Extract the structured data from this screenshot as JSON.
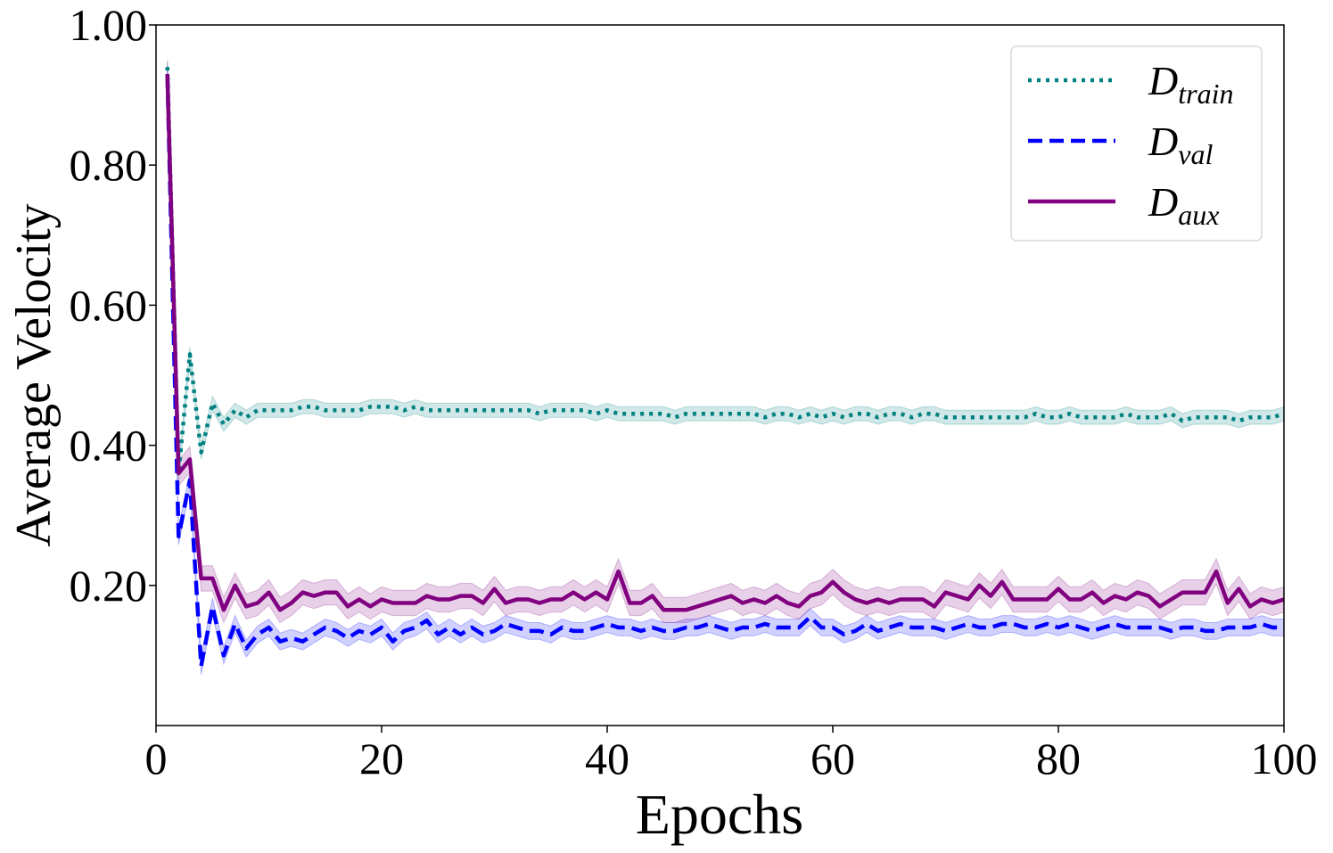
{
  "chart_data": {
    "type": "line",
    "title": "",
    "xlabel": "Epochs",
    "ylabel": "Average Velocity",
    "xlim": [
      0,
      100
    ],
    "ylim": [
      0.0,
      1.0
    ],
    "xticks": [
      0,
      20,
      40,
      60,
      80,
      100
    ],
    "xtick_labels": [
      "0",
      "20",
      "40",
      "60",
      "80",
      "100"
    ],
    "yticks": [
      0.2,
      0.4,
      0.6,
      0.8,
      1.0
    ],
    "ytick_labels": [
      "0.20",
      "0.40",
      "0.60",
      "0.80",
      "1.00"
    ],
    "legend_position": "top-right",
    "grid": false,
    "x": [
      1,
      2,
      3,
      4,
      5,
      6,
      7,
      8,
      9,
      10,
      11,
      12,
      13,
      14,
      15,
      16,
      17,
      18,
      19,
      20,
      21,
      22,
      23,
      24,
      25,
      26,
      27,
      28,
      29,
      30,
      31,
      32,
      33,
      34,
      35,
      36,
      37,
      38,
      39,
      40,
      41,
      42,
      43,
      44,
      45,
      46,
      47,
      48,
      49,
      50,
      51,
      52,
      53,
      54,
      55,
      56,
      57,
      58,
      59,
      60,
      61,
      62,
      63,
      64,
      65,
      66,
      67,
      68,
      69,
      70,
      71,
      72,
      73,
      74,
      75,
      76,
      77,
      78,
      79,
      80,
      81,
      82,
      83,
      84,
      85,
      86,
      87,
      88,
      89,
      90,
      91,
      92,
      93,
      94,
      95,
      96,
      97,
      98,
      99,
      100
    ],
    "series": [
      {
        "name": "D_train",
        "label_main": "D",
        "label_sub": "train",
        "color": "#008080",
        "style": "dotted",
        "values": [
          0.94,
          0.36,
          0.53,
          0.39,
          0.46,
          0.43,
          0.45,
          0.44,
          0.45,
          0.45,
          0.45,
          0.45,
          0.455,
          0.455,
          0.45,
          0.45,
          0.45,
          0.45,
          0.455,
          0.455,
          0.455,
          0.45,
          0.455,
          0.45,
          0.45,
          0.45,
          0.45,
          0.45,
          0.45,
          0.45,
          0.45,
          0.45,
          0.45,
          0.445,
          0.45,
          0.45,
          0.45,
          0.45,
          0.445,
          0.45,
          0.445,
          0.445,
          0.445,
          0.445,
          0.445,
          0.44,
          0.445,
          0.445,
          0.445,
          0.445,
          0.445,
          0.445,
          0.445,
          0.44,
          0.445,
          0.445,
          0.44,
          0.445,
          0.44,
          0.445,
          0.44,
          0.445,
          0.445,
          0.44,
          0.445,
          0.445,
          0.44,
          0.445,
          0.445,
          0.44,
          0.44,
          0.44,
          0.44,
          0.44,
          0.44,
          0.44,
          0.44,
          0.445,
          0.44,
          0.44,
          0.445,
          0.44,
          0.44,
          0.44,
          0.44,
          0.445,
          0.44,
          0.44,
          0.44,
          0.445,
          0.435,
          0.44,
          0.44,
          0.44,
          0.44,
          0.435,
          0.44,
          0.44,
          0.44,
          0.445
        ],
        "band": 0.01
      },
      {
        "name": "D_val",
        "label_main": "D",
        "label_sub": "val",
        "color": "#0000ff",
        "style": "dashed",
        "values": [
          0.93,
          0.27,
          0.35,
          0.085,
          0.17,
          0.1,
          0.145,
          0.11,
          0.13,
          0.14,
          0.12,
          0.125,
          0.12,
          0.13,
          0.14,
          0.135,
          0.125,
          0.135,
          0.13,
          0.14,
          0.12,
          0.135,
          0.14,
          0.15,
          0.13,
          0.14,
          0.13,
          0.14,
          0.13,
          0.135,
          0.145,
          0.14,
          0.135,
          0.135,
          0.13,
          0.14,
          0.135,
          0.135,
          0.14,
          0.145,
          0.14,
          0.14,
          0.135,
          0.14,
          0.135,
          0.135,
          0.14,
          0.14,
          0.145,
          0.14,
          0.135,
          0.14,
          0.14,
          0.145,
          0.14,
          0.14,
          0.14,
          0.155,
          0.14,
          0.14,
          0.13,
          0.135,
          0.145,
          0.135,
          0.14,
          0.145,
          0.14,
          0.14,
          0.14,
          0.135,
          0.14,
          0.145,
          0.14,
          0.14,
          0.145,
          0.145,
          0.14,
          0.14,
          0.145,
          0.14,
          0.145,
          0.14,
          0.135,
          0.14,
          0.145,
          0.14,
          0.14,
          0.14,
          0.14,
          0.135,
          0.14,
          0.14,
          0.135,
          0.135,
          0.14,
          0.14,
          0.14,
          0.145,
          0.14,
          0.14
        ],
        "band": 0.012
      },
      {
        "name": "D_aux",
        "label_main": "D",
        "label_sub": "aux",
        "color": "#800080",
        "style": "solid",
        "values": [
          0.93,
          0.36,
          0.38,
          0.21,
          0.21,
          0.165,
          0.2,
          0.17,
          0.175,
          0.19,
          0.165,
          0.175,
          0.19,
          0.185,
          0.19,
          0.19,
          0.17,
          0.18,
          0.17,
          0.18,
          0.175,
          0.175,
          0.175,
          0.185,
          0.18,
          0.18,
          0.185,
          0.185,
          0.175,
          0.195,
          0.175,
          0.18,
          0.18,
          0.175,
          0.18,
          0.18,
          0.19,
          0.18,
          0.19,
          0.18,
          0.22,
          0.175,
          0.175,
          0.185,
          0.165,
          0.165,
          0.165,
          0.17,
          0.175,
          0.18,
          0.185,
          0.175,
          0.18,
          0.175,
          0.185,
          0.175,
          0.17,
          0.185,
          0.19,
          0.205,
          0.19,
          0.18,
          0.175,
          0.18,
          0.175,
          0.18,
          0.18,
          0.18,
          0.17,
          0.19,
          0.185,
          0.18,
          0.2,
          0.185,
          0.205,
          0.18,
          0.18,
          0.18,
          0.18,
          0.195,
          0.18,
          0.18,
          0.19,
          0.175,
          0.185,
          0.18,
          0.19,
          0.185,
          0.17,
          0.18,
          0.19,
          0.19,
          0.19,
          0.22,
          0.175,
          0.195,
          0.17,
          0.18,
          0.175,
          0.18
        ],
        "band": 0.018
      }
    ]
  }
}
